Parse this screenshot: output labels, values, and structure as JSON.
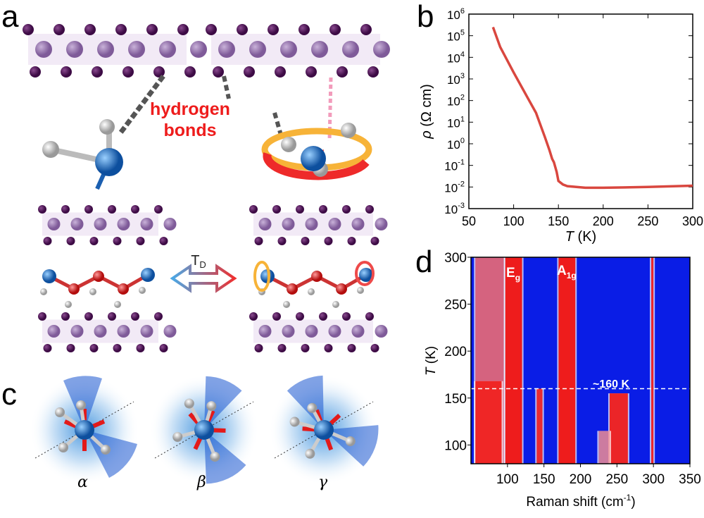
{
  "panels": {
    "a": "a",
    "b": "b",
    "c": "c",
    "d": "d"
  },
  "panel_a": {
    "annotation_line1": "hydrogen",
    "annotation_line2": "bonds",
    "transition_label": "T",
    "transition_sub": "D"
  },
  "panel_c": {
    "labels": [
      "α",
      "β",
      "γ"
    ]
  },
  "colors": {
    "red": "#ee1c1c",
    "blue": "#0a1de6",
    "curve": "#d9473f",
    "purple": "#5b1a63"
  },
  "chart_data": [
    {
      "type": "line",
      "panel": "b",
      "title": "",
      "xlabel": "T (K)",
      "xlabel_italic": "T",
      "xlabel_unit": "(K)",
      "ylabel": "ρ (Ω cm)",
      "ylabel_symbol": "ρ",
      "ylabel_unit": "(Ω cm)",
      "xlim": [
        50,
        300
      ],
      "ylim": [
        0.001,
        1000000
      ],
      "yscale": "log",
      "xticks": [
        "50",
        "100",
        "150",
        "200",
        "250",
        "300"
      ],
      "yticks": [
        {
          "base": "10",
          "exp": "-3"
        },
        {
          "base": "10",
          "exp": "-2"
        },
        {
          "base": "10",
          "exp": "-1"
        },
        {
          "base": "10",
          "exp": "0"
        },
        {
          "base": "10",
          "exp": "1"
        },
        {
          "base": "10",
          "exp": "2"
        },
        {
          "base": "10",
          "exp": "3"
        },
        {
          "base": "10",
          "exp": "4"
        },
        {
          "base": "10",
          "exp": "5"
        },
        {
          "base": "10",
          "exp": "6"
        }
      ],
      "series": [
        {
          "name": "resistivity",
          "x": [
            77,
            85,
            100,
            115,
            125,
            135,
            140,
            143,
            145,
            148,
            150,
            155,
            160,
            180,
            200,
            250,
            300
          ],
          "y": [
            250000,
            30000,
            2000,
            150,
            27,
            2,
            0.5,
            0.2,
            0.14,
            0.05,
            0.019,
            0.013,
            0.011,
            0.0092,
            0.0092,
            0.01,
            0.0115
          ]
        }
      ]
    },
    {
      "type": "heatmap",
      "panel": "d",
      "xlabel": "Raman shift (cm",
      "xlabel_sup": "-1",
      "xlabel_close": ")",
      "ylabel_italic": "T",
      "ylabel_unit": "(K)",
      "xlim": [
        50,
        350
      ],
      "ylim": [
        80,
        300
      ],
      "xticks": [
        "100",
        "150",
        "200",
        "250",
        "300",
        "350"
      ],
      "yticks": [
        "100",
        "150",
        "200",
        "250",
        "300"
      ],
      "colormap": [
        "#0a1de6",
        "#ffffff",
        "#ee1c1c"
      ],
      "annotations": {
        "eg": "E",
        "eg_sub": "g",
        "a1g": "A",
        "a1g_sub": "1g",
        "transition": "~160 K"
      },
      "transition_T": 160,
      "bands": [
        {
          "x0": 56,
          "x1": 95,
          "T0": 80,
          "T1": 300,
          "intensity": 0.55
        },
        {
          "x0": 56,
          "x1": 92,
          "T0": 80,
          "T1": 168,
          "intensity": 0.95
        },
        {
          "x0": 97,
          "x1": 120,
          "T0": 80,
          "T1": 300,
          "intensity": 1.0
        },
        {
          "x0": 140,
          "x1": 148,
          "T0": 80,
          "T1": 160,
          "intensity": 0.9
        },
        {
          "x0": 170,
          "x1": 193,
          "T0": 80,
          "T1": 300,
          "intensity": 1.0
        },
        {
          "x0": 240,
          "x1": 265,
          "T0": 80,
          "T1": 155,
          "intensity": 0.95
        },
        {
          "x0": 225,
          "x1": 240,
          "T0": 80,
          "T1": 115,
          "intensity": 0.4
        },
        {
          "x0": 297,
          "x1": 300,
          "T0": 80,
          "T1": 300,
          "intensity": 0.95
        }
      ]
    }
  ]
}
